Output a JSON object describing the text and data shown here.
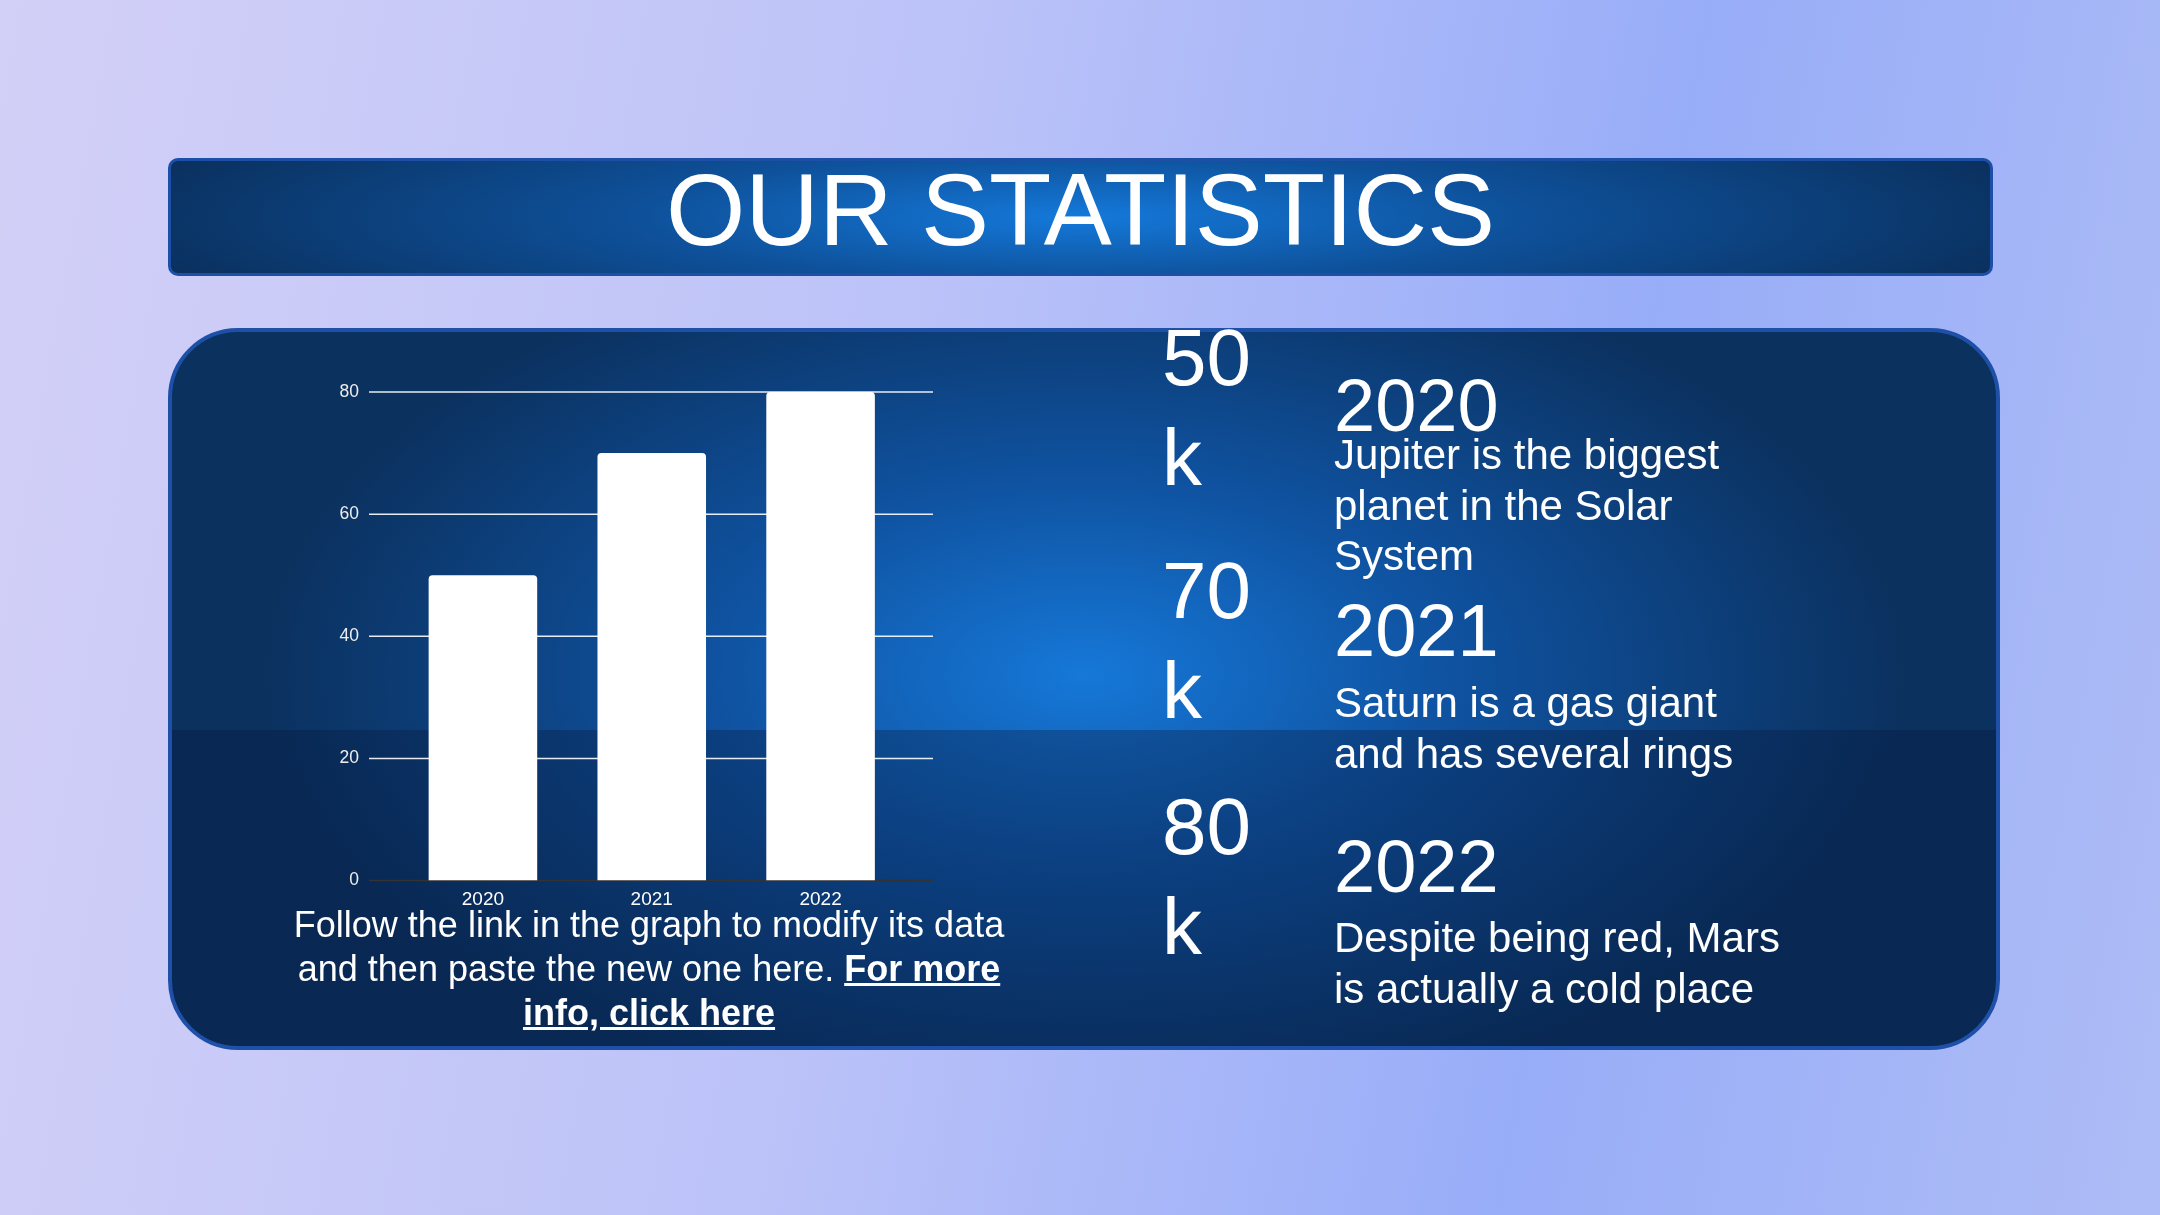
{
  "chart_data": [
    {
      "type": "bar",
      "title": "OUR STATISTICS",
      "categories": [
        "2020",
        "2021",
        "2022"
      ],
      "values": [
        50,
        70,
        80
      ],
      "color": "#ffffff",
      "ylim": [
        0,
        80
      ],
      "yticks": [
        0,
        20,
        40,
        60,
        80
      ],
      "grid": "y",
      "legend": false,
      "annotations": [
        "Follow the link in the graph to modify its data and then paste the new one here.",
        "For more info, click here"
      ]
    },
    {
      "type": "other",
      "annotations": [
        "50k",
        "2020",
        "Jupiter is the biggest planet in the Solar System",
        "70k",
        "2021",
        "Saturn is a gas giant and has several rings",
        "80k",
        "2022",
        "Despite being red, Mars is actually a cold place"
      ]
    }
  ]
}
